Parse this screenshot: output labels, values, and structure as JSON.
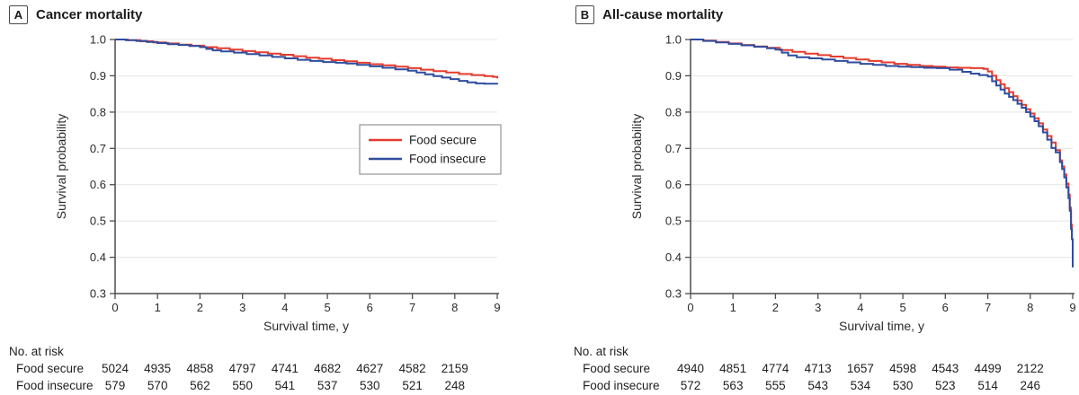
{
  "chart_data": [
    {
      "type": "line",
      "panel_label": "A",
      "title": "Cancer mortality",
      "xlabel": "Survival time, y",
      "ylabel": "Survival probability",
      "xlim": [
        0,
        9
      ],
      "ylim": [
        0.3,
        1.0
      ],
      "xticks": [
        0,
        1,
        2,
        3,
        4,
        5,
        6,
        7,
        8,
        9
      ],
      "yticks": [
        1.0,
        0.9,
        0.8,
        0.7,
        0.6,
        0.5,
        0.4,
        0.3
      ],
      "ytick_labels": [
        "1.0",
        "0.9",
        "0.8",
        "0.7",
        "0.6",
        "0.5",
        "0.4",
        "0.3"
      ],
      "grid": true,
      "step": true,
      "legend": {
        "show": true,
        "position": "center-right"
      },
      "series": [
        {
          "name": "Food secure",
          "color": "#e63b2c",
          "points": [
            [
              0,
              1.0
            ],
            [
              0.3,
              0.998
            ],
            [
              0.6,
              0.995
            ],
            [
              0.9,
              0.992
            ],
            [
              1.2,
              0.989
            ],
            [
              1.5,
              0.986
            ],
            [
              1.8,
              0.983
            ],
            [
              2.1,
              0.979
            ],
            [
              2.4,
              0.976
            ],
            [
              2.7,
              0.972
            ],
            [
              3.0,
              0.968
            ],
            [
              3.3,
              0.965
            ],
            [
              3.6,
              0.961
            ],
            [
              3.9,
              0.958
            ],
            [
              4.2,
              0.954
            ],
            [
              4.5,
              0.95
            ],
            [
              4.8,
              0.947
            ],
            [
              5.1,
              0.943
            ],
            [
              5.4,
              0.94
            ],
            [
              5.7,
              0.936
            ],
            [
              6.0,
              0.932
            ],
            [
              6.3,
              0.929
            ],
            [
              6.6,
              0.925
            ],
            [
              6.9,
              0.921
            ],
            [
              7.2,
              0.917
            ],
            [
              7.5,
              0.913
            ],
            [
              7.8,
              0.909
            ],
            [
              8.1,
              0.905
            ],
            [
              8.4,
              0.902
            ],
            [
              8.7,
              0.899
            ],
            [
              8.9,
              0.897
            ],
            [
              9.0,
              0.893
            ]
          ]
        },
        {
          "name": "Food insecure",
          "color": "#2f4d9f",
          "points": [
            [
              0,
              1.0
            ],
            [
              0.25,
              0.998
            ],
            [
              0.5,
              0.996
            ],
            [
              0.75,
              0.993
            ],
            [
              1.0,
              0.99
            ],
            [
              1.25,
              0.987
            ],
            [
              1.5,
              0.985
            ],
            [
              1.75,
              0.982
            ],
            [
              2.0,
              0.979
            ],
            [
              2.15,
              0.974
            ],
            [
              2.3,
              0.97
            ],
            [
              2.5,
              0.967
            ],
            [
              2.8,
              0.964
            ],
            [
              3.1,
              0.96
            ],
            [
              3.4,
              0.956
            ],
            [
              3.7,
              0.952
            ],
            [
              4.0,
              0.948
            ],
            [
              4.3,
              0.944
            ],
            [
              4.6,
              0.941
            ],
            [
              4.9,
              0.938
            ],
            [
              5.2,
              0.936
            ],
            [
              5.45,
              0.934
            ],
            [
              5.7,
              0.93
            ],
            [
              6.0,
              0.926
            ],
            [
              6.3,
              0.922
            ],
            [
              6.6,
              0.918
            ],
            [
              6.9,
              0.914
            ],
            [
              7.1,
              0.909
            ],
            [
              7.3,
              0.904
            ],
            [
              7.5,
              0.899
            ],
            [
              7.7,
              0.895
            ],
            [
              7.9,
              0.891
            ],
            [
              8.1,
              0.886
            ],
            [
              8.3,
              0.882
            ],
            [
              8.5,
              0.879
            ],
            [
              8.7,
              0.878
            ],
            [
              9.0,
              0.877
            ]
          ]
        }
      ],
      "risk_table": {
        "title": "No. at risk",
        "times": [
          0,
          1,
          2,
          3,
          4,
          5,
          6,
          7,
          8
        ],
        "rows": [
          {
            "label": "Food secure",
            "values": [
              5024,
              4935,
              4858,
              4797,
              4741,
              4682,
              4627,
              4582,
              2159
            ]
          },
          {
            "label": "Food insecure",
            "values": [
              579,
              570,
              562,
              550,
              541,
              537,
              530,
              521,
              248
            ]
          }
        ]
      }
    },
    {
      "type": "line",
      "panel_label": "B",
      "title": "All-cause mortality",
      "xlabel": "Survival time, y",
      "ylabel": "Survival probability",
      "xlim": [
        0,
        9
      ],
      "ylim": [
        0.3,
        1.0
      ],
      "xticks": [
        0,
        1,
        2,
        3,
        4,
        5,
        6,
        7,
        8,
        9
      ],
      "yticks": [
        1.0,
        0.9,
        0.8,
        0.7,
        0.6,
        0.5,
        0.4,
        0.3
      ],
      "ytick_labels": [
        "1.0",
        "0.9",
        "0.8",
        "0.7",
        "0.6",
        "0.5",
        "0.4",
        "0.3"
      ],
      "grid": true,
      "step": true,
      "legend": {
        "show": false,
        "position": "none"
      },
      "series": [
        {
          "name": "Food secure",
          "color": "#e63b2c",
          "points": [
            [
              0,
              1.0
            ],
            [
              0.3,
              0.997
            ],
            [
              0.6,
              0.993
            ],
            [
              0.9,
              0.989
            ],
            [
              1.2,
              0.985
            ],
            [
              1.5,
              0.981
            ],
            [
              1.8,
              0.977
            ],
            [
              2.1,
              0.971
            ],
            [
              2.4,
              0.966
            ],
            [
              2.7,
              0.961
            ],
            [
              3.0,
              0.957
            ],
            [
              3.3,
              0.953
            ],
            [
              3.6,
              0.949
            ],
            [
              3.9,
              0.945
            ],
            [
              4.2,
              0.941
            ],
            [
              4.5,
              0.937
            ],
            [
              4.8,
              0.933
            ],
            [
              5.1,
              0.93
            ],
            [
              5.4,
              0.927
            ],
            [
              5.7,
              0.925
            ],
            [
              6.0,
              0.923
            ],
            [
              6.3,
              0.922
            ],
            [
              6.6,
              0.921
            ],
            [
              6.9,
              0.919
            ],
            [
              7.0,
              0.912
            ],
            [
              7.1,
              0.9
            ],
            [
              7.2,
              0.888
            ],
            [
              7.3,
              0.877
            ],
            [
              7.4,
              0.866
            ],
            [
              7.5,
              0.855
            ],
            [
              7.6,
              0.844
            ],
            [
              7.7,
              0.832
            ],
            [
              7.8,
              0.82
            ],
            [
              7.9,
              0.808
            ],
            [
              8.0,
              0.796
            ],
            [
              8.1,
              0.783
            ],
            [
              8.2,
              0.769
            ],
            [
              8.3,
              0.752
            ],
            [
              8.4,
              0.734
            ],
            [
              8.5,
              0.716
            ],
            [
              8.6,
              0.695
            ],
            [
              8.7,
              0.667
            ],
            [
              8.75,
              0.65
            ],
            [
              8.8,
              0.628
            ],
            [
              8.85,
              0.603
            ],
            [
              8.9,
              0.573
            ],
            [
              8.93,
              0.537
            ],
            [
              8.96,
              0.49
            ],
            [
              8.98,
              0.452
            ]
          ]
        },
        {
          "name": "Food insecure",
          "color": "#2f4d9f",
          "points": [
            [
              0,
              1.0
            ],
            [
              0.3,
              0.996
            ],
            [
              0.6,
              0.992
            ],
            [
              0.9,
              0.988
            ],
            [
              1.2,
              0.984
            ],
            [
              1.5,
              0.98
            ],
            [
              1.8,
              0.976
            ],
            [
              2.0,
              0.972
            ],
            [
              2.15,
              0.964
            ],
            [
              2.3,
              0.956
            ],
            [
              2.5,
              0.951
            ],
            [
              2.8,
              0.948
            ],
            [
              3.1,
              0.945
            ],
            [
              3.4,
              0.941
            ],
            [
              3.7,
              0.937
            ],
            [
              4.0,
              0.933
            ],
            [
              4.3,
              0.93
            ],
            [
              4.6,
              0.927
            ],
            [
              4.9,
              0.925
            ],
            [
              5.2,
              0.924
            ],
            [
              5.5,
              0.922
            ],
            [
              5.8,
              0.921
            ],
            [
              6.1,
              0.917
            ],
            [
              6.4,
              0.911
            ],
            [
              6.6,
              0.906
            ],
            [
              6.8,
              0.902
            ],
            [
              7.0,
              0.898
            ],
            [
              7.1,
              0.885
            ],
            [
              7.2,
              0.873
            ],
            [
              7.3,
              0.862
            ],
            [
              7.4,
              0.851
            ],
            [
              7.5,
              0.842
            ],
            [
              7.6,
              0.833
            ],
            [
              7.7,
              0.823
            ],
            [
              7.8,
              0.812
            ],
            [
              7.9,
              0.8
            ],
            [
              8.0,
              0.788
            ],
            [
              8.1,
              0.775
            ],
            [
              8.2,
              0.761
            ],
            [
              8.3,
              0.744
            ],
            [
              8.4,
              0.724
            ],
            [
              8.5,
              0.701
            ],
            [
              8.6,
              0.689
            ],
            [
              8.7,
              0.662
            ],
            [
              8.75,
              0.643
            ],
            [
              8.8,
              0.62
            ],
            [
              8.85,
              0.592
            ],
            [
              8.9,
              0.563
            ],
            [
              8.93,
              0.528
            ],
            [
              8.96,
              0.478
            ],
            [
              8.98,
              0.45
            ],
            [
              9.0,
              0.372
            ]
          ]
        }
      ],
      "risk_table": {
        "title": "No. at risk",
        "times": [
          0,
          1,
          2,
          3,
          4,
          5,
          6,
          7,
          8
        ],
        "rows": [
          {
            "label": "Food secure",
            "values": [
              4940,
              4851,
              4774,
              4713,
              1657,
              4598,
              4543,
              4499,
              2122
            ]
          },
          {
            "label": "Food insecure",
            "values": [
              572,
              563,
              555,
              543,
              534,
              530,
              523,
              514,
              246
            ]
          }
        ]
      }
    }
  ]
}
